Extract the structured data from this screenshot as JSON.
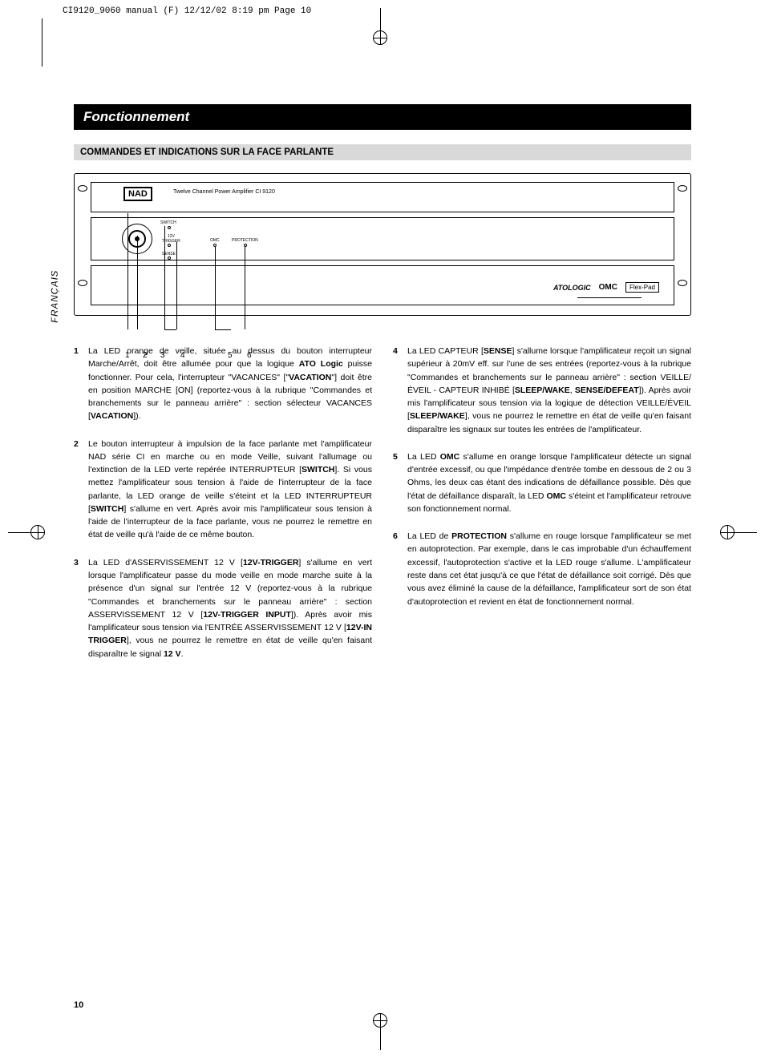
{
  "print_header": "CI9120_9060 manual (F)  12/12/02  8:19 pm  Page 10",
  "side_tab": "FRANÇAIS",
  "section_title": "Fonctionnement",
  "subsection_title": "COMMANDES ET INDICATIONS SUR LA FACE PARLANTE",
  "panel": {
    "brand": "NAD",
    "model": "Twelve Channel Power Amplifier CI 9120",
    "labels": {
      "switch": "SWITCH",
      "trigger": "12V\nTRIGGER",
      "sense": "SENSE",
      "omc_small": "OMC",
      "protection_small": "PROTECTION"
    },
    "badges": {
      "ato": "ATOLOGIC",
      "omc": "OMC",
      "flexpad": "Flex-Pad"
    },
    "callouts": [
      "1",
      "2",
      "3",
      "4",
      "5",
      "6"
    ]
  },
  "items_left": [
    {
      "n": "1",
      "html": "La LED orange de veille, située au dessus du bouton interrupteur Marche/Arrêt, doit être allumée pour que la logique <b>ATO Logic</b> puisse fonctionner. Pour cela, l'interrupteur \"VACANCES\" [\"<b>VACATION</b>\"] doit être en position MARCHE [ON] (reportez-vous à la rubrique \"Commandes et branchements sur le panneau arrière\" : section sélecteur VACANCES [<b>VACATION</b>])."
    },
    {
      "n": "2",
      "html": "Le bouton interrupteur à impulsion de la face parlante met l'amplificateur NAD série CI en marche ou en mode Veille, suivant l'allumage ou l'extinction de la LED verte repérée INTERRUPTEUR [<b>SWITCH</b>]. Si vous mettez l'amplificateur sous tension à l'aide de l'interrupteur de la face parlante, la LED orange de veille s'éteint et la LED INTERRUPTEUR [<b>SWITCH</b>] s'allume en vert. Après avoir mis l'amplificateur sous tension à l'aide de l'interrupteur de la face parlante, vous ne pourrez le remettre en état de veille qu'à l'aide de ce même bouton."
    },
    {
      "n": "3",
      "html": "La LED d'ASSERVISSEMENT 12 V [<b>12V-TRIGGER</b>] s'allume en vert lorsque l'amplificateur passe du mode veille en mode marche suite à la présence d'un signal sur l'entrée 12 V (reportez-vous à la rubrique \"Commandes et branchements sur le panneau arrière\" : section ASSERVISSEMENT 12 V [<b>12V-TRIGGER INPUT</b>]). Après avoir mis l'amplificateur sous tension via l'ENTRÉE ASSERVISSEMENT 12 V [<b>12V-IN TRIGGER</b>], vous ne pourrez le remettre en état de veille qu'en faisant disparaître le signal <b>12 V</b>."
    }
  ],
  "items_right": [
    {
      "n": "4",
      "html": "La LED CAPTEUR [<b>SENSE</b>] s'allume lorsque l'amplificateur reçoit un signal supérieur à 20mV eff. sur l'une de ses entrées (reportez-vous à la rubrique \"Commandes et branchements sur le panneau arrière\" : section VEILLE/ÉVEIL - CAPTEUR INHIBÉ [<b>SLEEP/WAKE</b>, <b>SENSE/DEFEAT</b>]). Après avoir mis l'amplificateur sous tension via la logique de détection VEILLE/ÉVEIL [<b>SLEEP/WAKE</b>], vous ne pourrez le remettre en état de veille qu'en faisant disparaître les signaux sur toutes les entrées de l'amplificateur."
    },
    {
      "n": "5",
      "html": "La LED <b>OMC</b> s'allume en orange lorsque l'amplificateur détecte un signal d'entrée excessif, ou que l'impédance d'entrée tombe en dessous de 2 ou 3 Ohms, les deux cas étant des indications de défaillance possible. Dès que l'état de défaillance disparaît, la LED <b>OMC</b> s'éteint et l'amplificateur retrouve son fonctionnement normal."
    },
    {
      "n": "6",
      "html": "La LED de <b>PROTECTION</b> s'allume en rouge lorsque l'amplificateur se met en autoprotection. Par exemple, dans le cas improbable d'un échauffement excessif, l'autoprotection s'active et la LED rouge s'allume. L'amplificateur reste dans cet état jusqu'à ce que l'état de défaillance soit corrigé. Dès que vous avez éliminé la cause de la défaillance, l'amplificateur sort de son état d'autoprotection et revient en état de fonctionnement normal."
    }
  ],
  "page_number": "10"
}
